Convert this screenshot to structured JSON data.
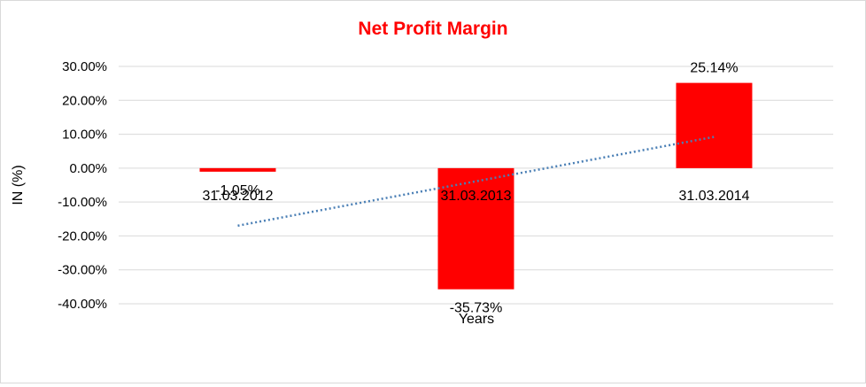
{
  "chart_data": {
    "type": "bar",
    "title": "Net Profit Margin",
    "xlabel": "Years",
    "ylabel": "IN (%)",
    "categories": [
      "31.03.2012",
      "31.03.2013",
      "31.03.2014"
    ],
    "series": [
      {
        "values": [
          -1.05,
          -35.73,
          25.14
        ],
        "color": "#ff0000"
      }
    ],
    "data_labels": [
      "-1.05%",
      "-35.73%",
      "25.14%"
    ],
    "y_ticks": [
      "30.00%",
      "20.00%",
      "10.00%",
      "0.00%",
      "-10.00%",
      "-20.00%",
      "-30.00%",
      "-40.00%"
    ],
    "y_tick_values": [
      30,
      20,
      10,
      0,
      -10,
      -20,
      -30,
      -40
    ],
    "ylim": [
      -40,
      30
    ],
    "grid": true,
    "legend": "none",
    "trendline": {
      "type": "linear",
      "style": "dotted",
      "color": "#4a7fb5"
    },
    "title_color": "#ff0000"
  }
}
